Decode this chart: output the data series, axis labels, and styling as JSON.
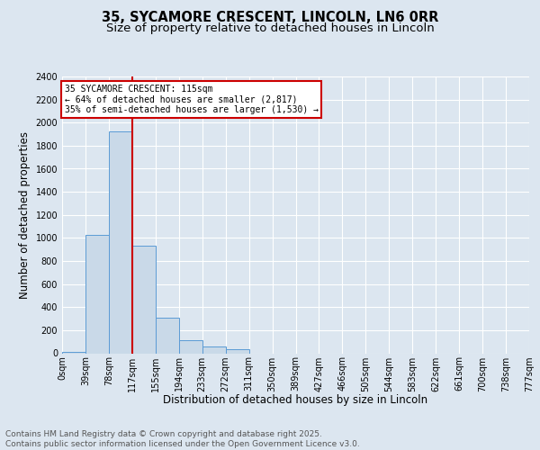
{
  "title1": "35, SYCAMORE CRESCENT, LINCOLN, LN6 0RR",
  "title2": "Size of property relative to detached houses in Lincoln",
  "xlabel": "Distribution of detached houses by size in Lincoln",
  "ylabel": "Number of detached properties",
  "bar_values": [
    15,
    1030,
    1920,
    930,
    310,
    110,
    55,
    35,
    0,
    0,
    0,
    0,
    0,
    0,
    0,
    0,
    0,
    0,
    0,
    0
  ],
  "bar_labels": [
    "0sqm",
    "39sqm",
    "78sqm",
    "117sqm",
    "155sqm",
    "194sqm",
    "233sqm",
    "272sqm",
    "311sqm",
    "350sqm",
    "389sqm",
    "427sqm",
    "466sqm",
    "505sqm",
    "544sqm",
    "583sqm",
    "622sqm",
    "661sqm",
    "700sqm",
    "738sqm",
    "777sqm"
  ],
  "bar_color": "#c9d9e8",
  "bar_edge_color": "#5b9bd5",
  "vline_x": 3,
  "vline_color": "#cc0000",
  "annotation_text": "35 SYCAMORE CRESCENT: 115sqm\n← 64% of detached houses are smaller (2,817)\n35% of semi-detached houses are larger (1,530) →",
  "annotation_box_edgecolor": "#cc0000",
  "ylim": [
    0,
    2400
  ],
  "yticks": [
    0,
    200,
    400,
    600,
    800,
    1000,
    1200,
    1400,
    1600,
    1800,
    2000,
    2200,
    2400
  ],
  "background_color": "#dce6f0",
  "plot_bg_color": "#dce6f0",
  "grid_color": "#ffffff",
  "footer_text": "Contains HM Land Registry data © Crown copyright and database right 2025.\nContains public sector information licensed under the Open Government Licence v3.0.",
  "title1_fontsize": 10.5,
  "title2_fontsize": 9.5,
  "axis_label_fontsize": 8.5,
  "tick_fontsize": 7,
  "annotation_fontsize": 7,
  "footer_fontsize": 6.5
}
